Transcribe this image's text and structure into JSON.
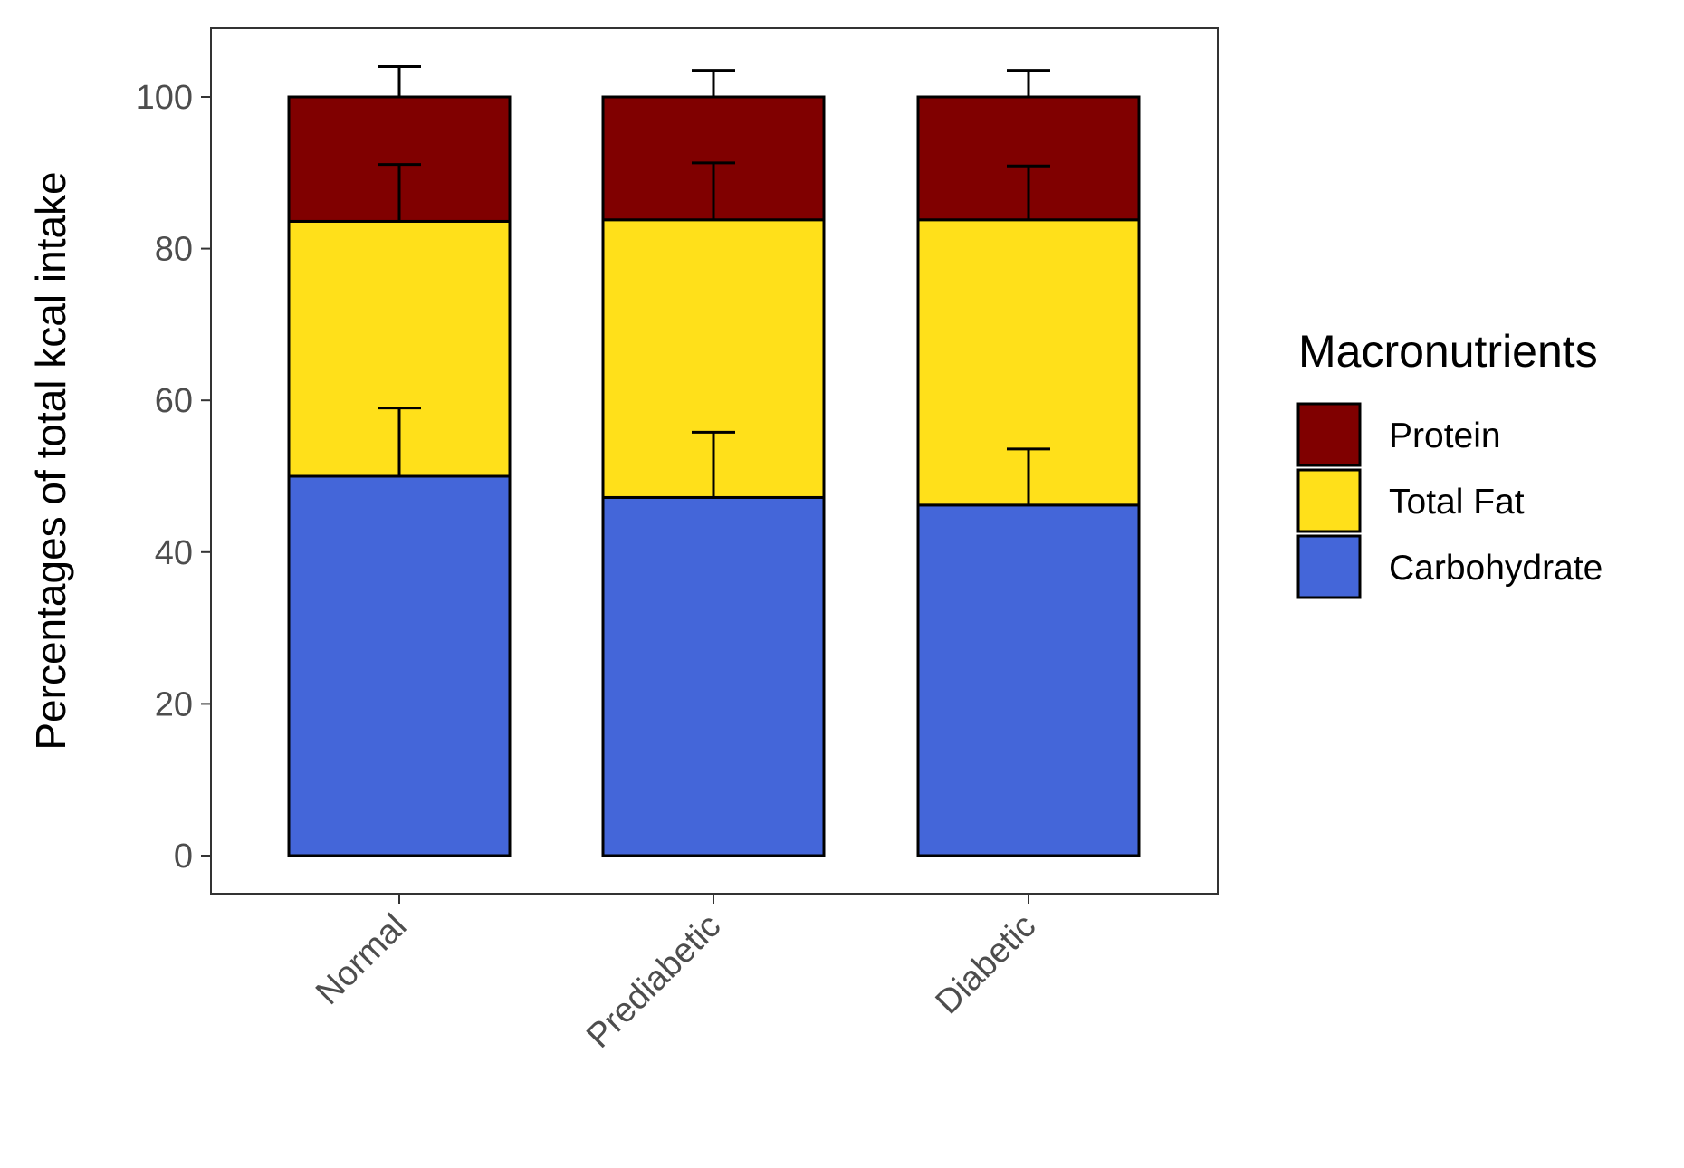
{
  "chart_data": {
    "type": "bar",
    "stacked": true,
    "categories": [
      "Normal",
      "Prediabetic",
      "Diabetic"
    ],
    "series": [
      {
        "name": "Carbohydrate",
        "color": "#4466d9",
        "values": [
          50.0,
          47.2,
          46.2
        ],
        "error_upper": [
          59.0,
          55.8,
          53.6
        ]
      },
      {
        "name": "Total Fat",
        "color": "#ffe01a",
        "values": [
          33.6,
          36.6,
          37.6
        ],
        "error_upper": [
          91.1,
          91.3,
          90.9
        ]
      },
      {
        "name": "Protein",
        "color": "#800000",
        "values": [
          16.4,
          16.2,
          16.2
        ],
        "error_upper": [
          104.0,
          103.5,
          103.5
        ]
      }
    ],
    "title": "",
    "xlabel": "",
    "ylabel": "Percentages of total kcal intake",
    "ylim": [
      -5,
      109
    ],
    "yticks": [
      0,
      20,
      40,
      60,
      80,
      100
    ],
    "grid": false,
    "legend": {
      "title": "Macronutrients",
      "placement": "right",
      "entries": [
        "Protein",
        "Total Fat",
        "Carbohydrate"
      ]
    }
  }
}
